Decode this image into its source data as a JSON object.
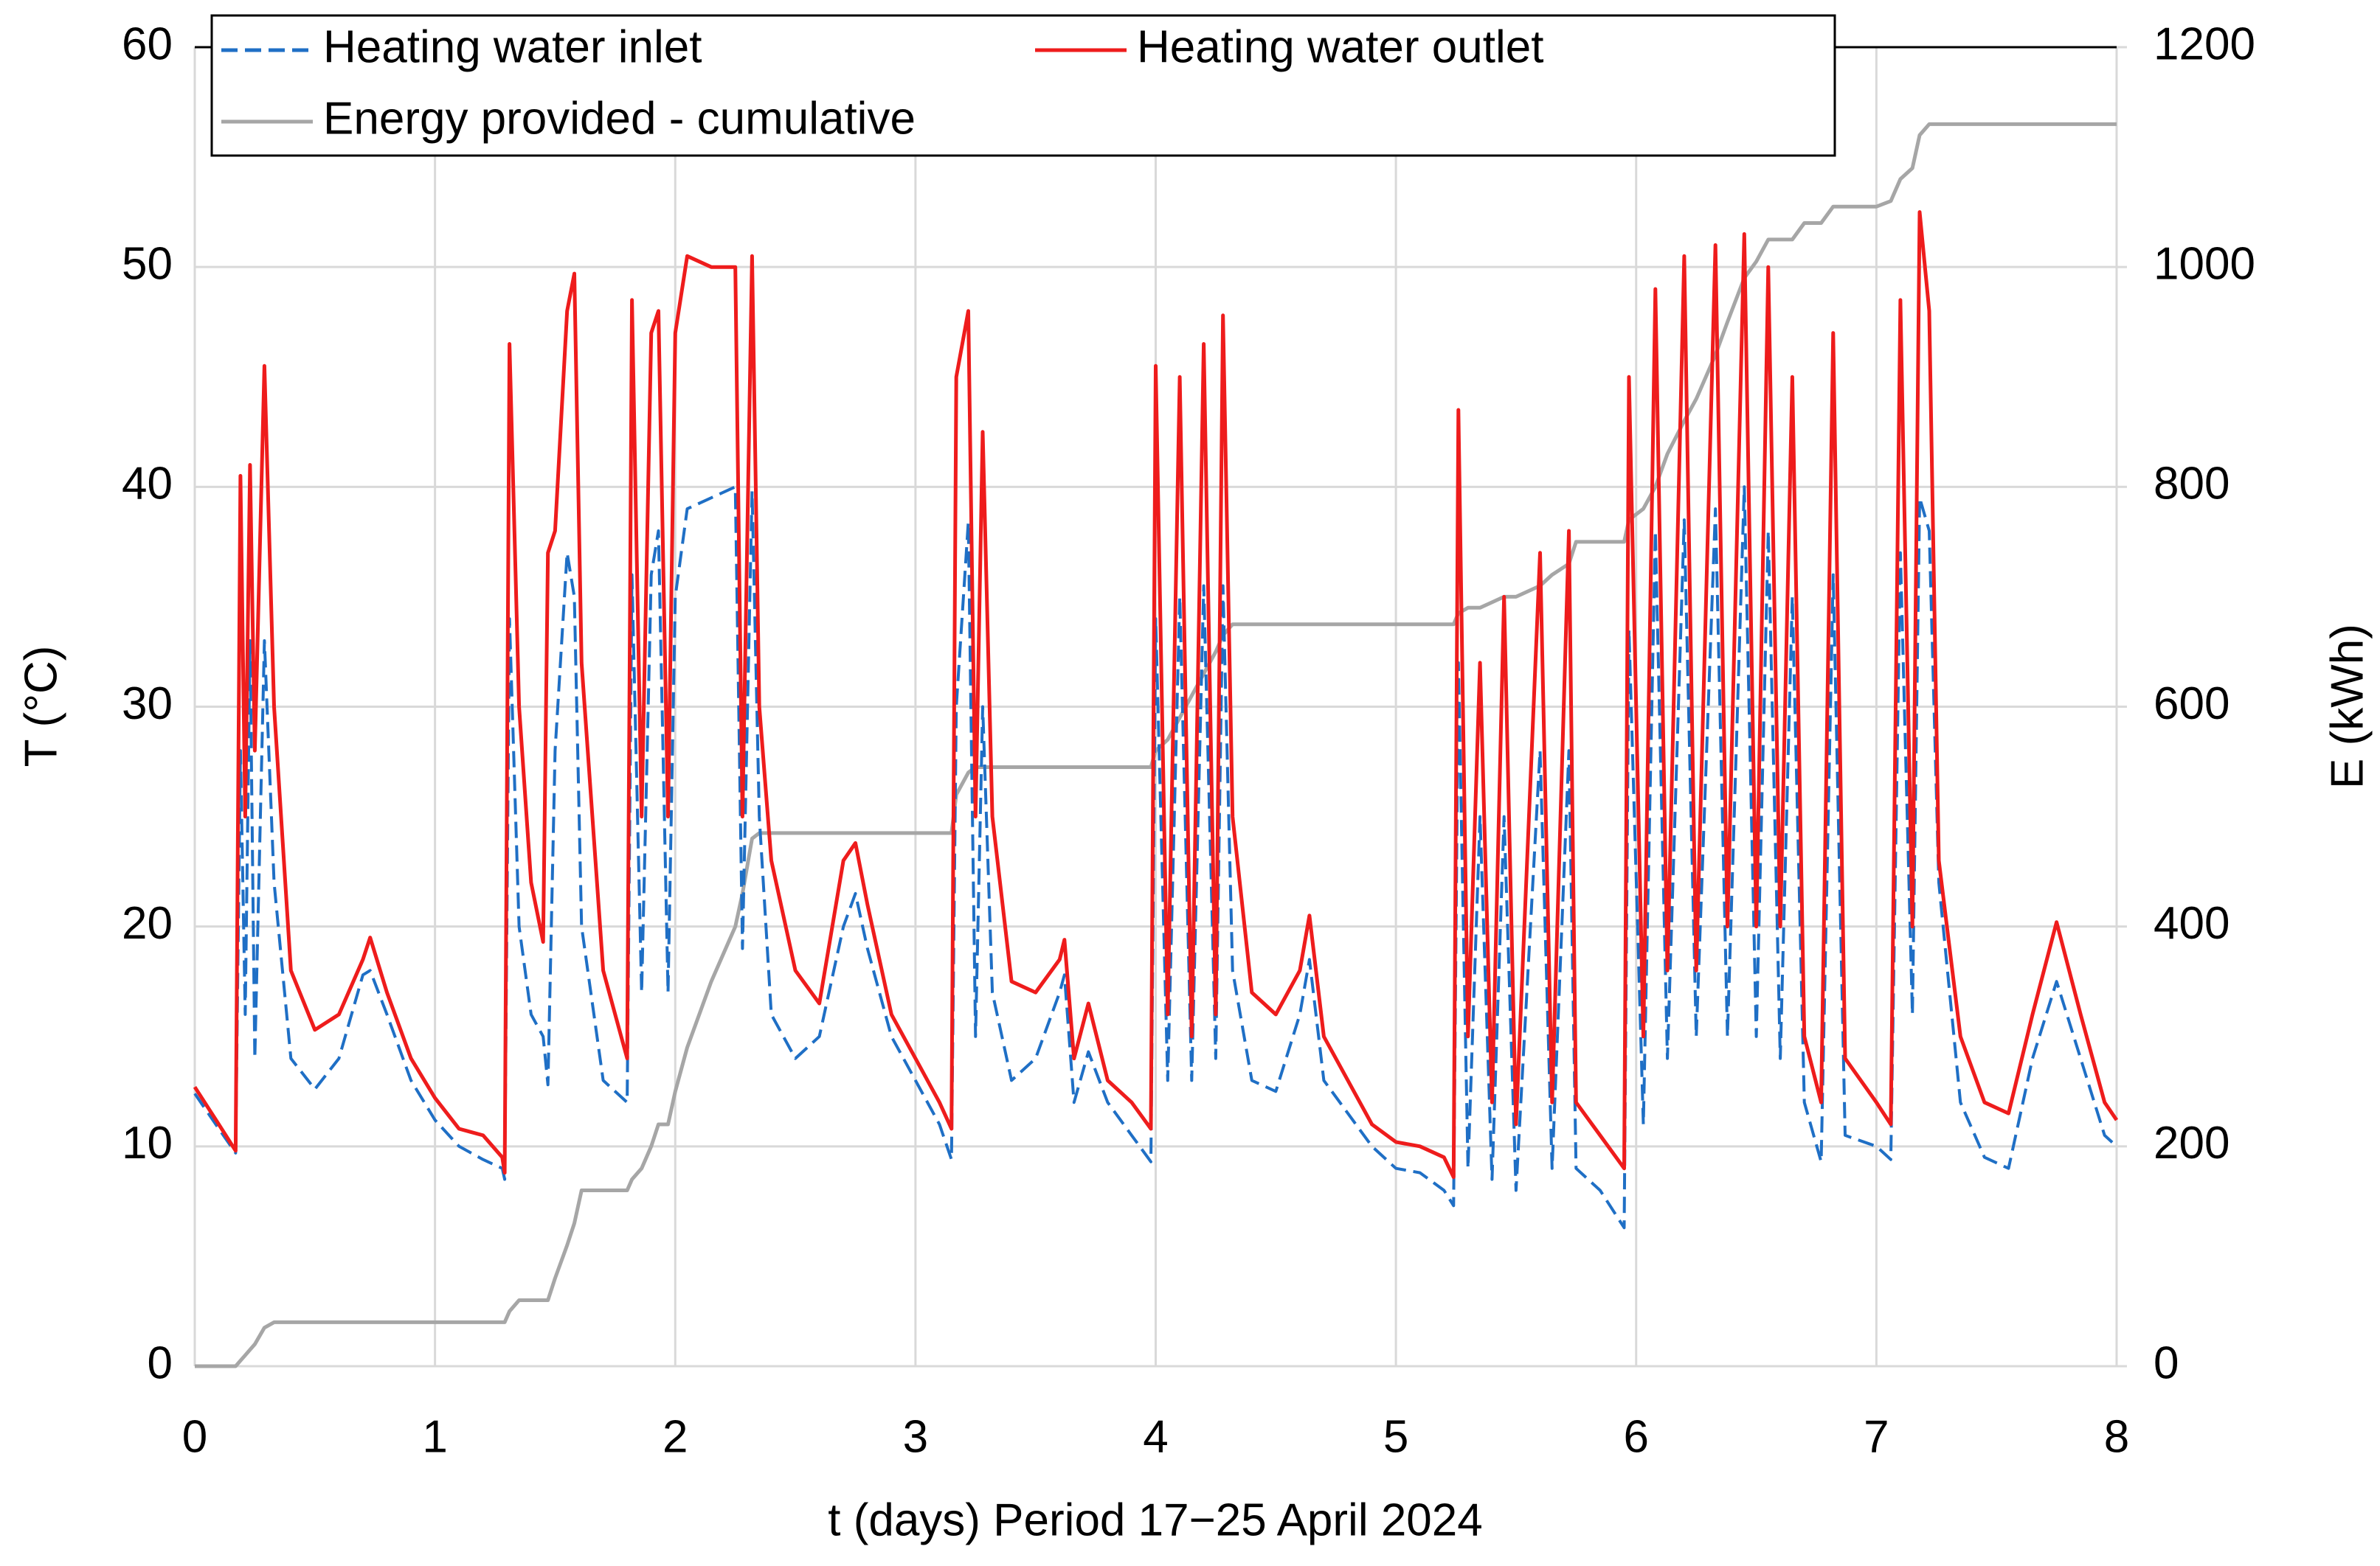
{
  "chart_data": {
    "type": "line",
    "x_label": "t (days) Period 17−25 April 2024",
    "y_label": "T (°C)",
    "y2_label": "E (kWh)",
    "xlim": [
      0,
      8
    ],
    "xticks": [
      0,
      1,
      2,
      3,
      4,
      5,
      6,
      7,
      8
    ],
    "ylim": [
      0,
      60
    ],
    "yticks": [
      0,
      10,
      20,
      30,
      40,
      50,
      60
    ],
    "y2lim": [
      0,
      1200
    ],
    "y2ticks": [
      0,
      200,
      400,
      600,
      800,
      1000,
      1200
    ],
    "grid": true,
    "legend": "top-left",
    "x": [
      0,
      0.1,
      0.17,
      0.19,
      0.21,
      0.23,
      0.25,
      0.29,
      0.33,
      0.4,
      0.5,
      0.6,
      0.7,
      0.73,
      0.8,
      0.9,
      1.0,
      1.1,
      1.2,
      1.28,
      1.29,
      1.31,
      1.35,
      1.4,
      1.45,
      1.47,
      1.5,
      1.55,
      1.58,
      1.61,
      1.7,
      1.8,
      1.82,
      1.86,
      1.9,
      1.93,
      1.97,
      2.0,
      2.05,
      2.15,
      2.25,
      2.28,
      2.32,
      2.35,
      2.4,
      2.5,
      2.6,
      2.7,
      2.75,
      2.8,
      2.9,
      3.0,
      3.1,
      3.15,
      3.17,
      3.22,
      3.25,
      3.28,
      3.32,
      3.4,
      3.5,
      3.6,
      3.62,
      3.66,
      3.72,
      3.8,
      3.9,
      3.98,
      4.0,
      4.05,
      4.1,
      4.15,
      4.2,
      4.25,
      4.28,
      4.32,
      4.4,
      4.5,
      4.6,
      4.64,
      4.7,
      4.8,
      4.9,
      5.0,
      5.1,
      5.2,
      5.24,
      5.26,
      5.3,
      5.35,
      5.4,
      5.45,
      5.5,
      5.6,
      5.65,
      5.72,
      5.75,
      5.85,
      5.95,
      5.97,
      6.03,
      6.08,
      6.13,
      6.2,
      6.25,
      6.33,
      6.38,
      6.45,
      6.5,
      6.55,
      6.6,
      6.65,
      6.7,
      6.77,
      6.82,
      6.87,
      7.0,
      7.06,
      7.1,
      7.15,
      7.18,
      7.22,
      7.26,
      7.35,
      7.45,
      7.55,
      7.65,
      7.75,
      7.85,
      7.95,
      8.0
    ],
    "series": [
      {
        "name": "Heating water inlet",
        "color": "#1f6fc5",
        "dashed": true,
        "values": [
          12.4,
          10.8,
          9.7,
          28,
          16,
          33,
          14,
          33,
          22,
          14,
          12.6,
          14,
          17.8,
          18,
          16,
          13,
          11.2,
          10.0,
          9.4,
          9.0,
          8.5,
          34,
          20,
          16,
          15,
          12.8,
          28,
          37,
          35,
          20,
          13,
          12,
          36,
          17,
          36,
          38,
          17,
          35,
          39,
          39.5,
          40,
          19,
          39.8,
          25,
          16,
          14,
          15,
          20,
          21.5,
          19,
          15,
          13,
          11,
          9.4,
          30,
          38.4,
          15,
          30,
          17,
          13,
          14,
          17,
          17.8,
          12,
          14.3,
          12,
          10.5,
          9.3,
          34,
          13,
          35,
          13,
          35.5,
          14,
          35.5,
          18,
          13,
          12.5,
          16,
          18.5,
          13,
          11.5,
          10,
          9,
          8.8,
          8,
          7.3,
          32,
          9,
          25,
          8.5,
          25,
          8,
          28,
          9,
          28,
          9,
          8,
          6.3,
          33.5,
          11,
          38,
          14,
          38.5,
          15,
          39,
          15,
          40,
          15,
          38,
          14,
          35,
          12,
          9.3,
          36,
          10.5,
          10,
          9.4,
          37,
          16,
          39.5,
          38,
          22,
          12,
          9.5,
          9,
          14,
          17.5,
          14,
          10.5,
          10
        ]
      },
      {
        "name": "Heating water outlet",
        "color": "#ee1c1c",
        "dashed": false,
        "values": [
          12.7,
          11,
          9.8,
          40.5,
          25,
          41,
          28,
          45.5,
          30,
          18,
          15.3,
          16,
          18.5,
          19.5,
          17,
          14,
          12.2,
          10.8,
          10.5,
          9.5,
          8.8,
          46.5,
          30,
          22,
          19.3,
          37,
          38,
          48,
          49.7,
          32,
          18,
          14,
          48.5,
          25,
          47,
          48,
          25,
          47,
          50.5,
          50,
          50,
          25,
          50.5,
          30,
          23,
          18,
          16.5,
          23,
          23.8,
          21,
          16,
          14,
          12,
          10.8,
          45,
          48,
          25,
          42.5,
          25,
          17.5,
          17,
          18.5,
          19.4,
          14,
          16.5,
          13,
          12,
          10.8,
          45.5,
          16,
          45,
          15,
          46.5,
          16,
          47.8,
          25,
          17,
          16,
          18,
          20.5,
          15,
          13,
          11,
          10.2,
          10,
          9.5,
          8.6,
          43.5,
          15,
          32,
          12,
          35,
          11,
          37,
          12,
          38,
          12,
          10.5,
          9,
          45,
          15,
          49,
          18,
          50.5,
          18,
          51,
          20,
          51.5,
          20,
          50,
          20,
          45,
          15,
          12,
          47,
          14,
          12,
          11,
          48.5,
          20,
          52.5,
          48,
          23,
          15,
          12,
          11.5,
          16,
          20.2,
          16,
          12,
          11.2
        ]
      },
      {
        "name": "Energy provided - cumulative",
        "color": "#a6a6a6",
        "dashed": false,
        "axis": "y2",
        "values": [
          0,
          0,
          0,
          5,
          10,
          15,
          20,
          35,
          40,
          40,
          40,
          40,
          40,
          40,
          40,
          40,
          40,
          40,
          40,
          40,
          40,
          50,
          60,
          60,
          60,
          60,
          80,
          110,
          130,
          160,
          160,
          160,
          170,
          180,
          200,
          220,
          220,
          250,
          290,
          350,
          400,
          430,
          480,
          485,
          485,
          485,
          485,
          485,
          485,
          485,
          485,
          485,
          485,
          485,
          520,
          540,
          545,
          545,
          545,
          545,
          545,
          545,
          545,
          545,
          545,
          545,
          545,
          545,
          560,
          570,
          590,
          610,
          630,
          650,
          665,
          675,
          675,
          675,
          675,
          675,
          675,
          675,
          675,
          675,
          675,
          675,
          675,
          685,
          690,
          690,
          695,
          700,
          700,
          710,
          720,
          730,
          750,
          750,
          750,
          770,
          780,
          800,
          830,
          860,
          880,
          920,
          950,
          990,
          1005,
          1025,
          1025,
          1025,
          1040,
          1040,
          1055,
          1055,
          1055,
          1060,
          1080,
          1090,
          1120,
          1130,
          1130,
          1130,
          1130,
          1130,
          1130,
          1130,
          1130,
          1130,
          1130
        ]
      }
    ]
  }
}
